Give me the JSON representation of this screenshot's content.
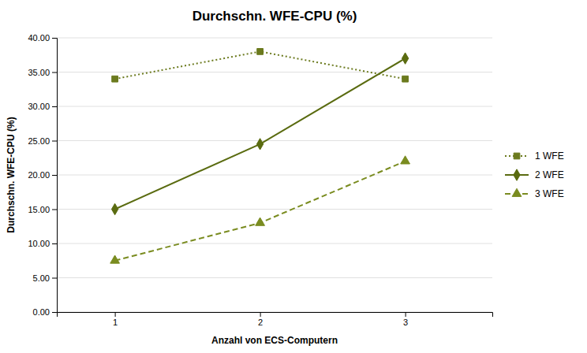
{
  "chart_data": {
    "type": "line",
    "title": "Durchschn. WFE-CPU (%)",
    "x_label": "Anzahl von ECS-Computern",
    "y_label": "Durchschn. WFE-CPU (%)",
    "x": [
      1,
      2,
      3
    ],
    "series": [
      {
        "name": "1 WFE",
        "color": "#6b7a1e",
        "marker": "square",
        "line_style": "dotted",
        "values": [
          34.0,
          38.0,
          34.0
        ]
      },
      {
        "name": "2 WFE",
        "color": "#5a6b10",
        "marker": "diamond",
        "line_style": "solid",
        "values": [
          15.0,
          24.5,
          37.0
        ]
      },
      {
        "name": "3 WFE",
        "color": "#7a8c20",
        "marker": "triangle",
        "line_style": "dashed",
        "values": [
          7.5,
          13.0,
          22.0
        ]
      }
    ],
    "xlim": [
      0.6,
      3.6
    ],
    "xticks": [
      1,
      2,
      3
    ],
    "ylim": [
      0,
      40
    ],
    "yticks": [
      {
        "value": 0,
        "label": "0.00"
      },
      {
        "value": 5,
        "label": "5.00"
      },
      {
        "value": 10,
        "label": "10.00"
      },
      {
        "value": 15,
        "label": "15.00"
      },
      {
        "value": 20,
        "label": "20.00"
      },
      {
        "value": 25,
        "label": "25.00"
      },
      {
        "value": 30,
        "label": "30.00"
      },
      {
        "value": 35,
        "label": "35.00"
      },
      {
        "value": 40,
        "label": "40.00"
      }
    ],
    "grid": true,
    "legend": "right"
  }
}
